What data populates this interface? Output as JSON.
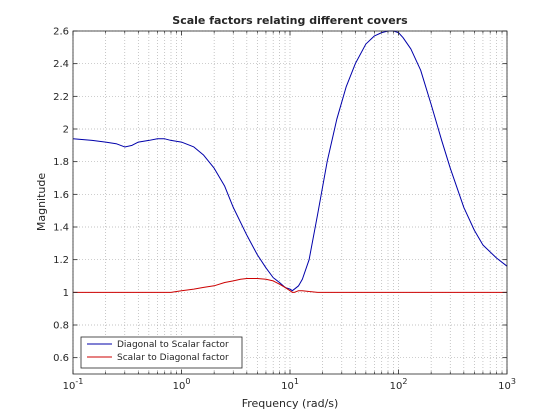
{
  "chart_data": {
    "type": "line",
    "title": "Scale factors relating different covers",
    "xlabel": "Frequency (rad/s)",
    "ylabel": "Magnitude",
    "xscale": "log",
    "xlim": [
      0.1,
      1000
    ],
    "ylim": [
      0.5,
      2.6
    ],
    "grid": true,
    "legend_position": "bottom-left",
    "x_ticks": [
      {
        "value": 0.1,
        "base": "10",
        "exp": "-1"
      },
      {
        "value": 1,
        "base": "10",
        "exp": "0"
      },
      {
        "value": 10,
        "base": "10",
        "exp": "1"
      },
      {
        "value": 100,
        "base": "10",
        "exp": "2"
      },
      {
        "value": 1000,
        "base": "10",
        "exp": "3"
      }
    ],
    "y_ticks": [
      {
        "value": 0.6,
        "label": "0.6"
      },
      {
        "value": 0.8,
        "label": "0.8"
      },
      {
        "value": 1.0,
        "label": "1"
      },
      {
        "value": 1.2,
        "label": "1.2"
      },
      {
        "value": 1.4,
        "label": "1.4"
      },
      {
        "value": 1.6,
        "label": "1.6"
      },
      {
        "value": 1.8,
        "label": "1.8"
      },
      {
        "value": 2.0,
        "label": "2"
      },
      {
        "value": 2.2,
        "label": "2.2"
      },
      {
        "value": 2.4,
        "label": "2.4"
      },
      {
        "value": 2.6,
        "label": "2.6"
      }
    ],
    "series": [
      {
        "name": "Diagonal to Scalar factor",
        "color": "#0000aa",
        "x": [
          0.1,
          0.15,
          0.2,
          0.25,
          0.3,
          0.35,
          0.4,
          0.5,
          0.6,
          0.7,
          0.8,
          1.0,
          1.3,
          1.6,
          2.0,
          2.5,
          3.0,
          4.0,
          5.0,
          6.0,
          7.0,
          8.0,
          9.0,
          10.0,
          10.5,
          11.0,
          12.0,
          13.0,
          15.0,
          18.0,
          22.0,
          27.0,
          33.0,
          40.0,
          50.0,
          60.0,
          70.0,
          80.0,
          90.0,
          100.0,
          110.0,
          130.0,
          160.0,
          200.0,
          250.0,
          300.0,
          400.0,
          500.0,
          600.0,
          800.0,
          1000.0
        ],
        "y": [
          1.94,
          1.93,
          1.92,
          1.91,
          1.89,
          1.9,
          1.92,
          1.93,
          1.94,
          1.94,
          1.93,
          1.92,
          1.89,
          1.84,
          1.76,
          1.65,
          1.52,
          1.35,
          1.23,
          1.15,
          1.09,
          1.06,
          1.03,
          1.02,
          1.01,
          1.02,
          1.04,
          1.08,
          1.2,
          1.48,
          1.8,
          2.06,
          2.26,
          2.4,
          2.52,
          2.57,
          2.59,
          2.6,
          2.6,
          2.59,
          2.56,
          2.49,
          2.36,
          2.15,
          1.93,
          1.76,
          1.52,
          1.38,
          1.29,
          1.21,
          1.16
        ]
      },
      {
        "name": "Scalar to Diagonal factor",
        "color": "#cc0000",
        "x": [
          0.1,
          0.3,
          0.6,
          0.8,
          1.0,
          1.3,
          1.6,
          2.0,
          2.5,
          3.0,
          3.5,
          4.0,
          5.0,
          6.0,
          7.0,
          8.0,
          9.0,
          10.0,
          10.5,
          11.0,
          12.0,
          13.0,
          15.0,
          18.0,
          20.0,
          30.0,
          100.0,
          1000.0
        ],
        "y": [
          1.0,
          1.0,
          1.0,
          1.0,
          1.01,
          1.02,
          1.03,
          1.04,
          1.06,
          1.07,
          1.08,
          1.085,
          1.085,
          1.08,
          1.07,
          1.05,
          1.03,
          1.01,
          1.0,
          1.0,
          1.01,
          1.01,
          1.005,
          1.0,
          1.0,
          1.0,
          1.0,
          1.0
        ]
      }
    ]
  }
}
